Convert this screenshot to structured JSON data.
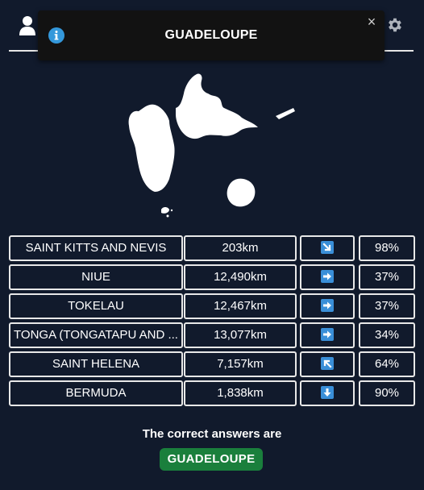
{
  "toast": {
    "title": "GUADELOUPE",
    "close_symbol": "×",
    "icon": "info-icon"
  },
  "header": {
    "left_icon": "user-icon",
    "right_icon": "gear-icon"
  },
  "guesses": [
    {
      "country": "SAINT KITTS AND NEVIS",
      "distance": "203km",
      "direction": "south-east",
      "proximity": "98%"
    },
    {
      "country": "NIUE",
      "distance": "12,490km",
      "direction": "east",
      "proximity": "37%"
    },
    {
      "country": "TOKELAU",
      "distance": "12,467km",
      "direction": "east",
      "proximity": "37%"
    },
    {
      "country": "TONGA (TONGATAPU AND ...",
      "distance": "13,077km",
      "direction": "east",
      "proximity": "34%"
    },
    {
      "country": "SAINT HELENA",
      "distance": "7,157km",
      "direction": "north-west",
      "proximity": "64%"
    },
    {
      "country": "BERMUDA",
      "distance": "1,838km",
      "direction": "south",
      "proximity": "90%"
    }
  ],
  "result": {
    "label": "The correct answers are",
    "answer": "GUADELOUPE"
  },
  "colors": {
    "background": "#111a2c",
    "arrow_tile": "#3a8fd8",
    "answer_badge": "#1a7f3c"
  }
}
